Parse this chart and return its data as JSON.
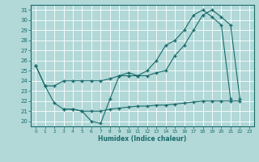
{
  "xlabel": "Humidex (Indice chaleur)",
  "background_color": "#b2d8d8",
  "grid_color": "#ffffff",
  "line_color": "#1a6b6b",
  "xlim": [
    -0.5,
    23.5
  ],
  "ylim": [
    19.5,
    31.5
  ],
  "yticks": [
    20,
    21,
    22,
    23,
    24,
    25,
    26,
    27,
    28,
    29,
    30,
    31
  ],
  "xticks": [
    0,
    1,
    2,
    3,
    4,
    5,
    6,
    7,
    8,
    9,
    10,
    11,
    12,
    13,
    14,
    15,
    16,
    17,
    18,
    19,
    20,
    21,
    22,
    23
  ],
  "series1_x": [
    0,
    1,
    2,
    3,
    4,
    5,
    6,
    7,
    8,
    9,
    10,
    11,
    12,
    13,
    14,
    15,
    16,
    17,
    18,
    19,
    20,
    21
  ],
  "series1_y": [
    25.5,
    23.5,
    21.8,
    21.2,
    21.2,
    21.0,
    20.0,
    19.8,
    22.2,
    24.5,
    24.8,
    24.5,
    25.0,
    26.0,
    27.5,
    28.0,
    29.0,
    30.5,
    31.0,
    30.3,
    29.5,
    22.2
  ],
  "series2_x": [
    0,
    1,
    2,
    3,
    4,
    5,
    6,
    7,
    8,
    9,
    10,
    11,
    12,
    13,
    14,
    15,
    16,
    17,
    18,
    19,
    20,
    21,
    22
  ],
  "series2_y": [
    25.5,
    23.5,
    23.5,
    24.0,
    24.0,
    24.0,
    24.0,
    24.0,
    24.2,
    24.5,
    24.5,
    24.5,
    24.5,
    24.8,
    25.0,
    26.5,
    27.5,
    29.0,
    30.5,
    31.0,
    30.3,
    29.5,
    22.2
  ],
  "series3_x": [
    3,
    4,
    5,
    6,
    7,
    8,
    9,
    10,
    11,
    12,
    13,
    14,
    15,
    16,
    17,
    18,
    19,
    20,
    21,
    22
  ],
  "series3_y": [
    21.2,
    21.2,
    21.0,
    21.0,
    21.0,
    21.2,
    21.3,
    21.4,
    21.5,
    21.5,
    21.6,
    21.6,
    21.7,
    21.8,
    21.9,
    22.0,
    22.0,
    22.0,
    22.0,
    22.0
  ]
}
